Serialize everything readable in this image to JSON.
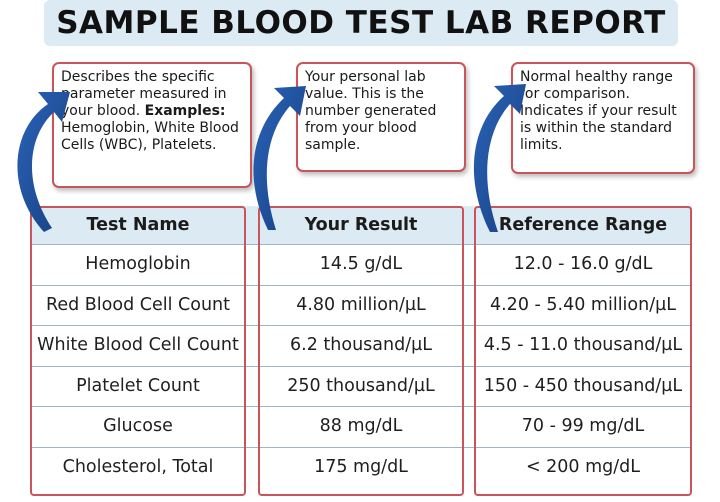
{
  "title": "SAMPLE BLOOD TEST LAB REPORT",
  "callouts": {
    "test_name": {
      "text": "Describes the specific parameter measured in your blood.",
      "examples_label": "Examples:",
      "examples_text": "Hemoglobin, White Blood Cells (WBC), Platelets."
    },
    "result": {
      "text": "Your personal lab value. This is the number generated from your blood sample."
    },
    "reference": {
      "text": "Normal healthy range for comparison. Indicates if your result is within the standard limits."
    }
  },
  "table": {
    "headers": [
      "Test Name",
      "Your Result",
      "Reference Range"
    ],
    "rows": [
      [
        "Hemoglobin",
        "14.5 g/dL",
        "12.0 - 16.0 g/dL"
      ],
      [
        "Red Blood Cell Count",
        "4.80 million/µL",
        "4.20 - 5.40 million/µL"
      ],
      [
        "White Blood Cell Count",
        "6.2 thousand/µL",
        "4.5 - 11.0 thousand/µL"
      ],
      [
        "Platelet Count",
        "250 thousand/µL",
        "150 - 450 thousand/µL"
      ],
      [
        "Glucose",
        "88 mg/dL",
        "70 - 99 mg/dL"
      ],
      [
        "Cholesterol, Total",
        "175 mg/dL",
        "< 200 mg/dL"
      ]
    ]
  },
  "colors": {
    "header_band": "#dcebf3",
    "frame_red": "#c9545a",
    "arrow_blue": "#1e4f9c"
  }
}
